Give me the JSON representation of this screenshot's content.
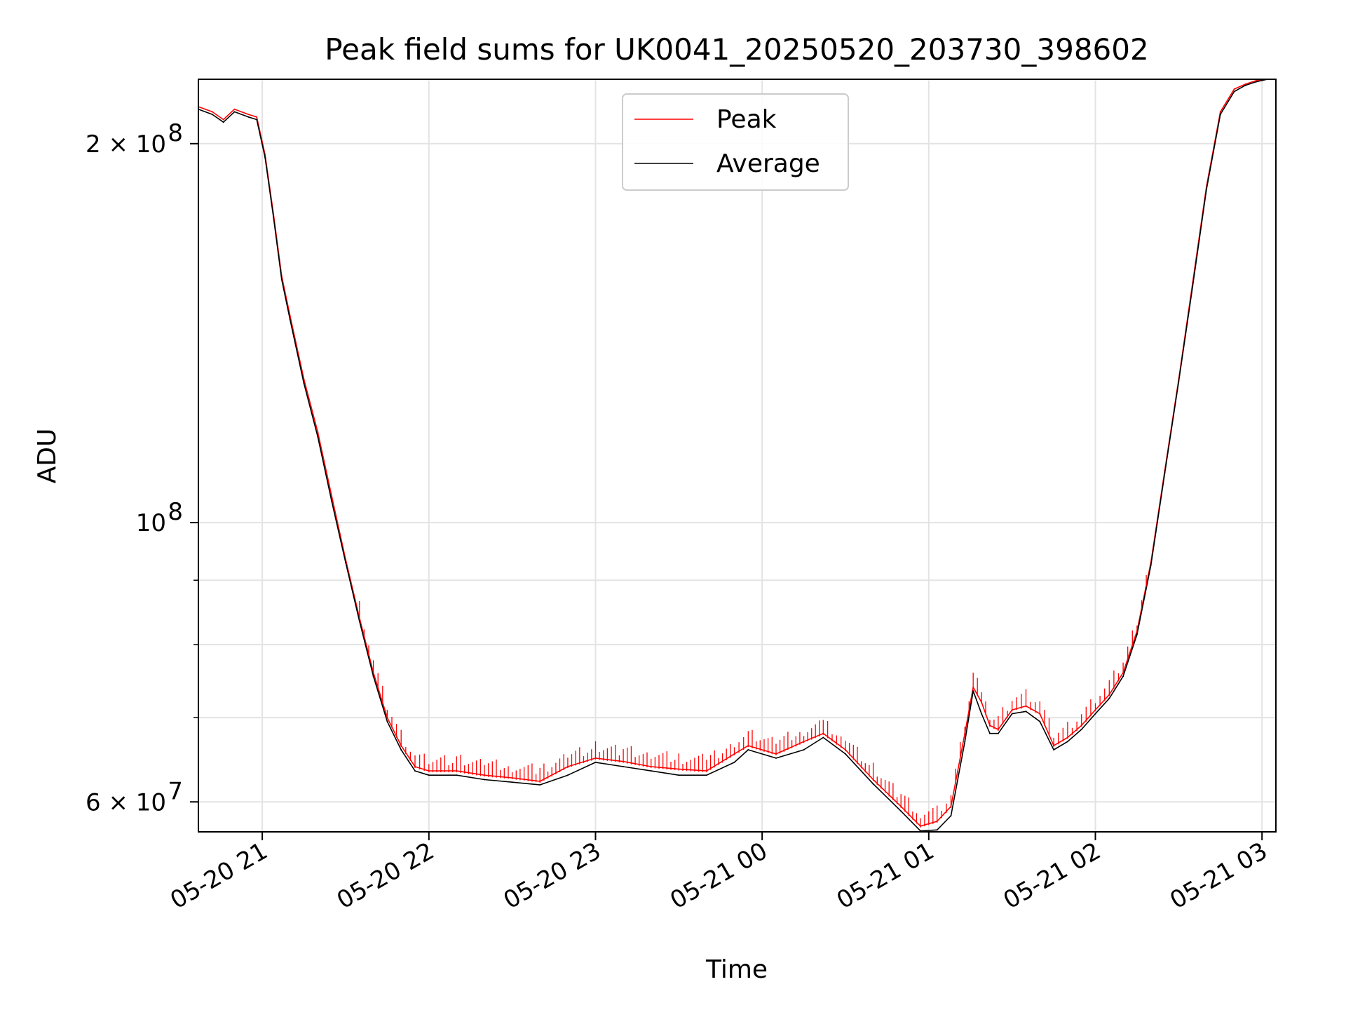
{
  "chart_data": {
    "type": "line",
    "title": "Peak field sums for UK0041_20250520_203730_398602",
    "xlabel": "Time",
    "ylabel": "ADU",
    "yscale": "log",
    "grid": true,
    "legend_location": "upper center",
    "xlim": [
      "2025-05-20 20:37",
      "2025-05-21 03:05"
    ],
    "ylim": [
      56800000,
      225000000
    ],
    "x_ticks": [
      {
        "value": "2025-05-20 21:00",
        "label": "05-20 21"
      },
      {
        "value": "2025-05-20 22:00",
        "label": "05-20 22"
      },
      {
        "value": "2025-05-20 23:00",
        "label": "05-20 23"
      },
      {
        "value": "2025-05-21 00:00",
        "label": "05-21 00"
      },
      {
        "value": "2025-05-21 01:00",
        "label": "05-21 01"
      },
      {
        "value": "2025-05-21 02:00",
        "label": "05-21 02"
      },
      {
        "value": "2025-05-21 03:00",
        "label": "05-21 03"
      }
    ],
    "y_ticks": [
      {
        "value": 60000000,
        "base": "6 × 10",
        "exp": "7"
      },
      {
        "value": 100000000,
        "base": "10",
        "exp": "8"
      },
      {
        "value": 200000000,
        "base": "2 × 10",
        "exp": "8"
      }
    ],
    "y_minor_ticks": [
      70000000,
      80000000,
      90000000
    ],
    "series": [
      {
        "name": "Peak",
        "color": "#ff0000",
        "spiky": true,
        "x": [
          "2025-05-20 20:37",
          "2025-05-20 20:42",
          "2025-05-20 20:46",
          "2025-05-20 20:50",
          "2025-05-20 20:55",
          "2025-05-20 20:58",
          "2025-05-20 21:01",
          "2025-05-20 21:04",
          "2025-05-20 21:07",
          "2025-05-20 21:10",
          "2025-05-20 21:15",
          "2025-05-20 21:20",
          "2025-05-20 21:25",
          "2025-05-20 21:30",
          "2025-05-20 21:35",
          "2025-05-20 21:40",
          "2025-05-20 21:45",
          "2025-05-20 21:50",
          "2025-05-20 21:55",
          "2025-05-20 22:00",
          "2025-05-20 22:10",
          "2025-05-20 22:20",
          "2025-05-20 22:30",
          "2025-05-20 22:40",
          "2025-05-20 22:50",
          "2025-05-20 23:00",
          "2025-05-20 23:10",
          "2025-05-20 23:20",
          "2025-05-20 23:30",
          "2025-05-20 23:40",
          "2025-05-20 23:50",
          "2025-05-20 23:55",
          "2025-05-21 00:05",
          "2025-05-21 00:15",
          "2025-05-21 00:22",
          "2025-05-21 00:30",
          "2025-05-21 00:40",
          "2025-05-21 00:50",
          "2025-05-21 00:57",
          "2025-05-21 01:03",
          "2025-05-21 01:08",
          "2025-05-21 01:13",
          "2025-05-21 01:16",
          "2025-05-21 01:19",
          "2025-05-21 01:22",
          "2025-05-21 01:25",
          "2025-05-21 01:30",
          "2025-05-21 01:35",
          "2025-05-21 01:40",
          "2025-05-21 01:45",
          "2025-05-21 01:50",
          "2025-05-21 01:55",
          "2025-05-21 02:00",
          "2025-05-21 02:05",
          "2025-05-21 02:10",
          "2025-05-21 02:15",
          "2025-05-21 02:20",
          "2025-05-21 02:25",
          "2025-05-21 02:30",
          "2025-05-21 02:35",
          "2025-05-21 02:40",
          "2025-05-21 02:45",
          "2025-05-21 02:50",
          "2025-05-21 02:54",
          "2025-05-21 02:58",
          "2025-05-21 03:02"
        ],
        "y": [
          214000000,
          212000000,
          209000000,
          213000000,
          211000000,
          210000000,
          196000000,
          176000000,
          157000000,
          146000000,
          130000000,
          118000000,
          105000000,
          93500000,
          84000000,
          76000000,
          70000000,
          66500000,
          64000000,
          63500000,
          63500000,
          63000000,
          62700000,
          62300000,
          64000000,
          65000000,
          64600000,
          64000000,
          63700000,
          63500000,
          65500000,
          66500000,
          65500000,
          67000000,
          68000000,
          66000000,
          62500000,
          59500000,
          57400000,
          57900000,
          59500000,
          68000000,
          74000000,
          72000000,
          69000000,
          68500000,
          71000000,
          71500000,
          70500000,
          66500000,
          67500000,
          69000000,
          71000000,
          73000000,
          76000000,
          82000000,
          93000000,
          110000000,
          130000000,
          155000000,
          185000000,
          212000000,
          221000000,
          223000000,
          224500000,
          225000000
        ]
      },
      {
        "name": "Average",
        "color": "#000000",
        "spiky": false,
        "x": [
          "2025-05-20 20:37",
          "2025-05-20 20:42",
          "2025-05-20 20:46",
          "2025-05-20 20:50",
          "2025-05-20 20:55",
          "2025-05-20 20:58",
          "2025-05-20 21:01",
          "2025-05-20 21:04",
          "2025-05-20 21:07",
          "2025-05-20 21:10",
          "2025-05-20 21:15",
          "2025-05-20 21:20",
          "2025-05-20 21:25",
          "2025-05-20 21:30",
          "2025-05-20 21:35",
          "2025-05-20 21:40",
          "2025-05-20 21:45",
          "2025-05-20 21:50",
          "2025-05-20 21:55",
          "2025-05-20 22:00",
          "2025-05-20 22:10",
          "2025-05-20 22:20",
          "2025-05-20 22:30",
          "2025-05-20 22:40",
          "2025-05-20 22:50",
          "2025-05-20 23:00",
          "2025-05-20 23:10",
          "2025-05-20 23:20",
          "2025-05-20 23:30",
          "2025-05-20 23:40",
          "2025-05-20 23:50",
          "2025-05-20 23:55",
          "2025-05-21 00:05",
          "2025-05-21 00:15",
          "2025-05-21 00:22",
          "2025-05-21 00:30",
          "2025-05-21 00:40",
          "2025-05-21 00:50",
          "2025-05-21 00:57",
          "2025-05-21 01:03",
          "2025-05-21 01:08",
          "2025-05-21 01:13",
          "2025-05-21 01:16",
          "2025-05-21 01:19",
          "2025-05-21 01:22",
          "2025-05-21 01:25",
          "2025-05-21 01:30",
          "2025-05-21 01:35",
          "2025-05-21 01:40",
          "2025-05-21 01:45",
          "2025-05-21 01:50",
          "2025-05-21 01:55",
          "2025-05-21 02:00",
          "2025-05-21 02:05",
          "2025-05-21 02:10",
          "2025-05-21 02:15",
          "2025-05-21 02:20",
          "2025-05-21 02:25",
          "2025-05-21 02:30",
          "2025-05-21 02:35",
          "2025-05-21 02:40",
          "2025-05-21 02:45",
          "2025-05-21 02:50",
          "2025-05-21 02:54",
          "2025-05-21 02:58",
          "2025-05-21 03:02"
        ],
        "y": [
          213000000,
          211000000,
          208000000,
          212000000,
          210000000,
          209000000,
          195000000,
          175000000,
          156000000,
          145000000,
          129000000,
          117000000,
          104000000,
          93000000,
          83500000,
          75500000,
          69500000,
          66000000,
          63500000,
          63000000,
          63000000,
          62500000,
          62200000,
          61900000,
          63000000,
          64500000,
          64000000,
          63500000,
          63000000,
          63000000,
          64500000,
          66000000,
          65000000,
          66000000,
          67500000,
          65500000,
          62000000,
          59000000,
          56900000,
          57000000,
          58500000,
          67000000,
          73500000,
          70500000,
          68000000,
          68000000,
          70500000,
          70800000,
          69500000,
          66000000,
          67000000,
          68500000,
          70500000,
          72500000,
          75500000,
          81500000,
          92500000,
          109500000,
          129500000,
          154000000,
          184000000,
          211000000,
          220000000,
          222500000,
          224000000,
          225000000
        ]
      }
    ]
  }
}
